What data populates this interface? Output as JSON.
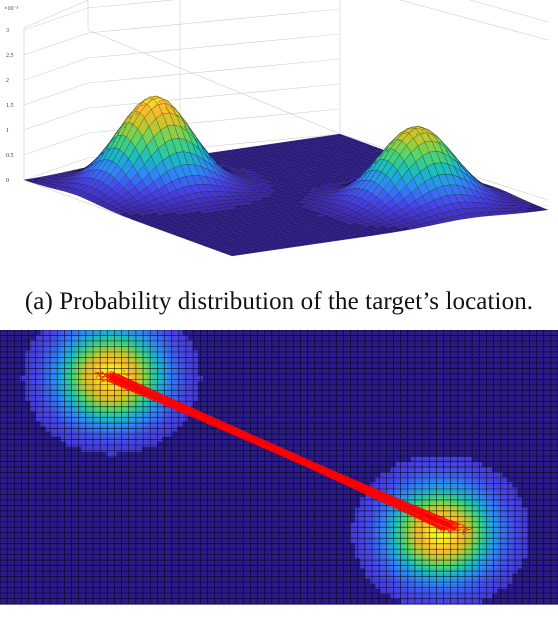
{
  "captions": {
    "a": "(a) Probability distribution of the target’s location."
  },
  "chart_data": [
    {
      "type": "surface",
      "z_exponent_label": "×10⁻³",
      "z_tick_labels": [
        "0",
        "0.5",
        "1",
        "1.5",
        "2",
        "2.5",
        "3"
      ],
      "z_range": [
        0,
        3
      ],
      "peaks": [
        {
          "x": 0.25,
          "y": 0.25,
          "height": 2.4,
          "sigma": 0.1
        },
        {
          "x": 0.75,
          "y": 0.75,
          "height": 2.0,
          "sigma": 0.1
        }
      ],
      "colormap": [
        "#3e26a8",
        "#4744e8",
        "#2e87f7",
        "#1bbdbd",
        "#52d66b",
        "#c1c82d",
        "#fdba2e",
        "#f9fb15"
      ],
      "grid": true,
      "floor_color": "#281a78"
    },
    {
      "type": "heatmap",
      "peaks": [
        {
          "x": 0.2,
          "y": 0.17,
          "intensity": 1.0,
          "sigma": 0.085
        },
        {
          "x": 0.79,
          "y": 0.74,
          "intensity": 1.0,
          "sigma": 0.085
        }
      ],
      "trajectory": {
        "start": [
          0.2,
          0.17
        ],
        "end": [
          0.81,
          0.72
        ],
        "color": "#ff0000"
      },
      "grid": true,
      "background_color": "#2a1b8a"
    }
  ]
}
